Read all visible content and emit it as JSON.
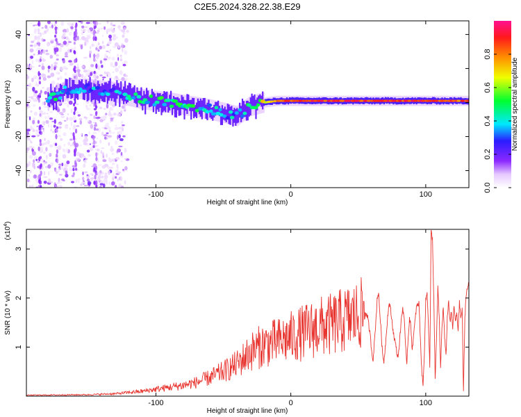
{
  "title": "C2E5.2024.328.22.38.E29",
  "chart_data": [
    {
      "type": "heatmap",
      "xlabel": "Height of straight line (km)",
      "ylabel": "Frequency (Hz)",
      "xlim": [
        -196,
        132
      ],
      "ylim": [
        -50,
        48
      ],
      "xticks": [
        "-100",
        "0",
        "100"
      ],
      "xtick_values": [
        -100,
        0,
        100
      ],
      "yticks": [
        "40",
        "20",
        "0",
        "-20",
        "-40"
      ],
      "ytick_values": [
        40,
        20,
        0,
        -20,
        -40
      ],
      "colorbar": {
        "label": "Normalized spectral amplitude",
        "range": [
          0,
          1
        ],
        "ticks": [
          "0.0",
          "0.2",
          "0.4",
          "0.6",
          "0.8"
        ],
        "tick_values": [
          0,
          0.2,
          0.4,
          0.6,
          0.8
        ]
      },
      "ridge_frequency": [
        [
          -175,
          3
        ],
        [
          -165,
          8
        ],
        [
          -150,
          8
        ],
        [
          -130,
          6
        ],
        [
          -110,
          2
        ],
        [
          -90,
          0
        ],
        [
          -75,
          -2
        ],
        [
          -60,
          -4
        ],
        [
          -50,
          -6
        ],
        [
          -40,
          -8
        ],
        [
          -35,
          -5
        ],
        [
          -30,
          -2
        ],
        [
          -20,
          0
        ],
        [
          -10,
          1
        ],
        [
          0,
          1
        ],
        [
          50,
          1
        ],
        [
          100,
          1
        ],
        [
          130,
          1
        ]
      ],
      "ridge_amplitude": [
        [
          -175,
          0.45
        ],
        [
          -165,
          0.4
        ],
        [
          -150,
          0.35
        ],
        [
          -130,
          0.35
        ],
        [
          -110,
          0.45
        ],
        [
          -90,
          0.5
        ],
        [
          -70,
          0.45
        ],
        [
          -50,
          0.4
        ],
        [
          -40,
          0.35
        ],
        [
          -30,
          0.55
        ],
        [
          -15,
          0.75
        ],
        [
          -5,
          0.9
        ],
        [
          0,
          0.95
        ],
        [
          50,
          0.95
        ],
        [
          100,
          0.95
        ],
        [
          130,
          0.9
        ]
      ]
    },
    {
      "type": "line",
      "xlabel": "Height of straight line (km)",
      "ylabel": "SNR (10 * v/v)",
      "multiplier": "(x10",
      "multiplier_exp": "4",
      "xlim": [
        -196,
        132
      ],
      "ylim": [
        0,
        3.4
      ],
      "xticks": [
        "-100",
        "0",
        "100"
      ],
      "xtick_values": [
        -100,
        0,
        100
      ],
      "yticks": [
        "3",
        "2",
        "1"
      ],
      "ytick_values": [
        3,
        2,
        1
      ],
      "color": "#e8342f",
      "envelope": [
        [
          -196,
          0.02
        ],
        [
          -150,
          0.03
        ],
        [
          -130,
          0.05
        ],
        [
          -110,
          0.1
        ],
        [
          -100,
          0.14
        ],
        [
          -80,
          0.22
        ],
        [
          -70,
          0.28
        ],
        [
          -60,
          0.38
        ],
        [
          -50,
          0.5
        ],
        [
          -40,
          0.65
        ],
        [
          -30,
          0.9
        ],
        [
          -20,
          1.05
        ],
        [
          -10,
          1.1
        ],
        [
          0,
          1.2
        ],
        [
          10,
          1.3
        ],
        [
          20,
          1.4
        ],
        [
          30,
          1.45
        ],
        [
          40,
          1.55
        ],
        [
          50,
          1.65
        ],
        [
          55,
          1.7
        ]
      ],
      "tail_points": [
        [
          55,
          1.72
        ],
        [
          57,
          1.6
        ],
        [
          59,
          1.2
        ],
        [
          60,
          0.9
        ],
        [
          61,
          0.75
        ],
        [
          63,
          1.5
        ],
        [
          64,
          2.0
        ],
        [
          65,
          2.1
        ],
        [
          66,
          1.7
        ],
        [
          67,
          1.3
        ],
        [
          68,
          0.85
        ],
        [
          69,
          0.7
        ],
        [
          70,
          1.0
        ],
        [
          72,
          1.7
        ],
        [
          73,
          1.9
        ],
        [
          74,
          1.75
        ],
        [
          76,
          1.3
        ],
        [
          78,
          1.0
        ],
        [
          79,
          0.8
        ],
        [
          80,
          0.9
        ],
        [
          82,
          1.6
        ],
        [
          83,
          1.8
        ],
        [
          84,
          1.6
        ],
        [
          85,
          1.0
        ],
        [
          86,
          0.7
        ],
        [
          87,
          1.2
        ],
        [
          88,
          1.6
        ],
        [
          89,
          1.4
        ],
        [
          90,
          0.95
        ],
        [
          92,
          1.5
        ],
        [
          93,
          1.8
        ],
        [
          95,
          1.9
        ],
        [
          96,
          1.2
        ],
        [
          97,
          0.55
        ],
        [
          98,
          0.2
        ],
        [
          99,
          0.9
        ],
        [
          100,
          1.95
        ],
        [
          101,
          2.1
        ],
        [
          102,
          1.5
        ],
        [
          103,
          0.6
        ],
        [
          104,
          3.35
        ],
        [
          105,
          3.2
        ],
        [
          106,
          2.0
        ],
        [
          107,
          0.3
        ],
        [
          108,
          1.2
        ],
        [
          109,
          2.2
        ],
        [
          110,
          1.6
        ],
        [
          111,
          0.55
        ],
        [
          112,
          1.4
        ],
        [
          113,
          1.8
        ],
        [
          114,
          1.2
        ],
        [
          115,
          0.8
        ],
        [
          116,
          1.6
        ],
        [
          117,
          1.95
        ],
        [
          118,
          1.5
        ],
        [
          119,
          1.7
        ],
        [
          120,
          1.4
        ],
        [
          121,
          1.85
        ],
        [
          122,
          1.5
        ],
        [
          123,
          1.7
        ],
        [
          124,
          1.35
        ],
        [
          125,
          1.9
        ],
        [
          126,
          1.6
        ],
        [
          127,
          1.75
        ],
        [
          128,
          0.05
        ],
        [
          129,
          1.6
        ],
        [
          130,
          2.1
        ],
        [
          132,
          2.3
        ]
      ]
    }
  ]
}
